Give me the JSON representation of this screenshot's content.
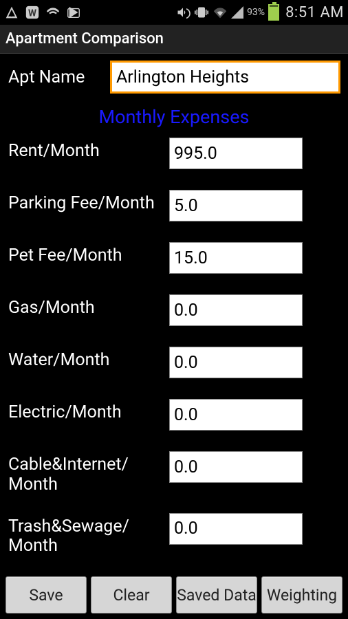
{
  "status": {
    "battery_pct": "93%",
    "clock": "8:51 AM"
  },
  "app": {
    "title": "Apartment Comparison"
  },
  "name_field": {
    "label": "Apt Name",
    "value": "Arlington Heights"
  },
  "section": {
    "title": "Monthly Expenses"
  },
  "fields": [
    {
      "label": "Rent/Month",
      "value": "995.0"
    },
    {
      "label": "Parking Fee/Month",
      "value": "5.0"
    },
    {
      "label": "Pet Fee/Month",
      "value": "15.0"
    },
    {
      "label": "Gas/Month",
      "value": "0.0"
    },
    {
      "label": "Water/Month",
      "value": "0.0"
    },
    {
      "label": "Electric/Month",
      "value": "0.0"
    },
    {
      "label": "Cable&Internet/\nMonth",
      "value": "0.0"
    },
    {
      "label": "Trash&Sewage/\nMonth",
      "value": "0.0"
    }
  ],
  "buttons": {
    "save": "Save",
    "clear": "Clear",
    "saved_data": "Saved Data",
    "weighting": "Weighting"
  }
}
